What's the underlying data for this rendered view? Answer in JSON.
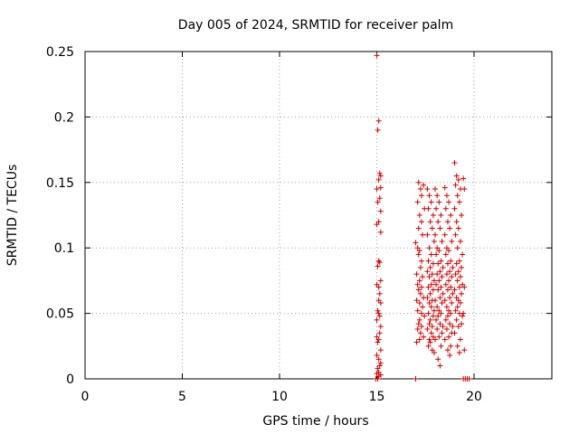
{
  "chart_data": {
    "type": "scatter",
    "title": "Day 005 of 2024, SRMTID for receiver palm",
    "xlabel": "GPS time / hours",
    "ylabel": "SRMTID / TECUs",
    "xlim": [
      0,
      24
    ],
    "ylim": [
      0,
      0.25
    ],
    "xticks": [
      0,
      5,
      10,
      15,
      20
    ],
    "yticks": [
      0,
      0.05,
      0.1,
      0.15,
      0.2,
      0.25
    ],
    "xtick_labels": [
      "0",
      "5",
      "10",
      "15",
      "20"
    ],
    "ytick_labels": [
      "0",
      "0.05",
      "0.1",
      "0.15",
      "0.2",
      "0.25"
    ],
    "grid": true,
    "marker": "+",
    "color": "#d00000",
    "series": [
      {
        "x": [
          15.0,
          15.1,
          15.05,
          15.15,
          15.2,
          15.1,
          15.2,
          15.0,
          15.15,
          15.05,
          15.2,
          15.1,
          15.0,
          15.2,
          15.1,
          15.15,
          15.05,
          15.2,
          15.0,
          15.1,
          15.15,
          15.2,
          15.05,
          15.1,
          15.0,
          15.2,
          15.15,
          15.1,
          15.05,
          15.2,
          15.0,
          15.1,
          15.2,
          15.15,
          15.05,
          15.1,
          15.0,
          15.2,
          15.1,
          15.15,
          15.0,
          15.1,
          17.0,
          17.1,
          17.2,
          17.15,
          17.3,
          17.25,
          17.05,
          17.35,
          17.2,
          17.1,
          17.3,
          17.15,
          17.25,
          17.4,
          17.05,
          17.2,
          17.35,
          17.1,
          17.3,
          17.45,
          17.2,
          17.15,
          17.3,
          17.1,
          17.25,
          17.4,
          17.2,
          17.05,
          17.35,
          17.15,
          17.3,
          17.2,
          17.45,
          17.1,
          17.3,
          17.25,
          17.4,
          17.15,
          17.6,
          17.7,
          17.8,
          17.65,
          17.9,
          17.75,
          17.85,
          17.6,
          17.95,
          17.7,
          17.8,
          17.65,
          17.9,
          17.75,
          17.6,
          17.85,
          17.7,
          17.95,
          17.8,
          17.65,
          17.9,
          17.75,
          17.6,
          17.85,
          17.7,
          17.8,
          17.95,
          17.65,
          17.9,
          17.75,
          17.7,
          17.85,
          17.6,
          17.8,
          17.9,
          17.7,
          17.75,
          17.65,
          17.85,
          17.95,
          18.0,
          18.1,
          18.2,
          18.05,
          18.3,
          18.15,
          18.25,
          18.0,
          18.35,
          18.1,
          18.2,
          18.05,
          18.3,
          18.15,
          18.4,
          18.25,
          18.1,
          18.35,
          18.2,
          18.05,
          18.3,
          18.15,
          18.4,
          18.25,
          18.0,
          18.35,
          18.1,
          18.2,
          18.3,
          18.15,
          18.05,
          18.25,
          18.4,
          18.1,
          18.35,
          18.2,
          18.0,
          18.3,
          18.15,
          18.25,
          18.5,
          18.6,
          18.7,
          18.55,
          18.8,
          18.65,
          18.75,
          18.5,
          18.85,
          18.6,
          18.7,
          18.55,
          18.8,
          18.65,
          18.9,
          18.75,
          18.6,
          18.85,
          18.7,
          18.55,
          18.8,
          18.65,
          18.9,
          18.75,
          18.5,
          18.85,
          18.6,
          18.7,
          18.8,
          18.65,
          18.55,
          18.75,
          18.9,
          18.6,
          18.85,
          18.7,
          18.5,
          18.8,
          18.65,
          18.75,
          19.0,
          19.1,
          19.2,
          19.05,
          19.3,
          19.15,
          19.25,
          19.0,
          19.35,
          19.1,
          19.2,
          19.05,
          19.3,
          19.15,
          19.4,
          19.25,
          19.1,
          19.35,
          19.2,
          19.05,
          19.3,
          19.15,
          19.4,
          19.25,
          19.0,
          19.35,
          19.1,
          19.2,
          19.3,
          19.15,
          19.05,
          19.25,
          19.4,
          19.1,
          19.35,
          19.2,
          19.0,
          19.3,
          19.15,
          19.25,
          19.45,
          19.5,
          19.5,
          19.45,
          19.5,
          14.95,
          15.05,
          17.0,
          19.45,
          19.55,
          19.65,
          19.75
        ],
        "y": [
          0.247,
          0.197,
          0.19,
          0.157,
          0.155,
          0.152,
          0.146,
          0.145,
          0.138,
          0.135,
          0.128,
          0.12,
          0.118,
          0.112,
          0.09,
          0.089,
          0.086,
          0.075,
          0.072,
          0.07,
          0.065,
          0.058,
          0.052,
          0.05,
          0.045,
          0.04,
          0.035,
          0.03,
          0.028,
          0.022,
          0.018,
          0.015,
          0.012,
          0.01,
          0.008,
          0.005,
          0.004,
          0.003,
          0.06,
          0.048,
          0.032,
          0.002,
          0.104,
          0.1,
          0.098,
          0.095,
          0.09,
          0.085,
          0.08,
          0.078,
          0.075,
          0.072,
          0.07,
          0.068,
          0.065,
          0.062,
          0.06,
          0.058,
          0.055,
          0.052,
          0.05,
          0.048,
          0.045,
          0.042,
          0.04,
          0.038,
          0.035,
          0.032,
          0.03,
          0.028,
          0.11,
          0.115,
          0.12,
          0.125,
          0.13,
          0.135,
          0.14,
          0.145,
          0.148,
          0.15,
          0.145,
          0.14,
          0.135,
          0.13,
          0.125,
          0.12,
          0.115,
          0.11,
          0.105,
          0.1,
          0.095,
          0.09,
          0.088,
          0.085,
          0.082,
          0.08,
          0.078,
          0.075,
          0.072,
          0.07,
          0.068,
          0.065,
          0.062,
          0.06,
          0.058,
          0.055,
          0.052,
          0.05,
          0.048,
          0.045,
          0.042,
          0.04,
          0.038,
          0.035,
          0.032,
          0.03,
          0.028,
          0.025,
          0.022,
          0.02,
          0.145,
          0.14,
          0.135,
          0.13,
          0.125,
          0.12,
          0.115,
          0.11,
          0.105,
          0.1,
          0.098,
          0.095,
          0.09,
          0.088,
          0.085,
          0.082,
          0.08,
          0.078,
          0.075,
          0.072,
          0.07,
          0.068,
          0.065,
          0.062,
          0.06,
          0.058,
          0.055,
          0.052,
          0.05,
          0.048,
          0.045,
          0.042,
          0.04,
          0.038,
          0.035,
          0.032,
          0.03,
          0.025,
          0.015,
          0.01,
          0.146,
          0.14,
          0.135,
          0.13,
          0.125,
          0.12,
          0.115,
          0.11,
          0.105,
          0.1,
          0.098,
          0.095,
          0.09,
          0.088,
          0.085,
          0.082,
          0.08,
          0.078,
          0.075,
          0.072,
          0.07,
          0.068,
          0.065,
          0.062,
          0.06,
          0.058,
          0.055,
          0.052,
          0.05,
          0.048,
          0.045,
          0.042,
          0.04,
          0.038,
          0.035,
          0.032,
          0.03,
          0.025,
          0.022,
          0.018,
          0.165,
          0.155,
          0.152,
          0.148,
          0.145,
          0.14,
          0.135,
          0.13,
          0.125,
          0.12,
          0.115,
          0.11,
          0.105,
          0.1,
          0.095,
          0.09,
          0.088,
          0.085,
          0.082,
          0.08,
          0.078,
          0.075,
          0.072,
          0.07,
          0.068,
          0.065,
          0.062,
          0.06,
          0.058,
          0.055,
          0.052,
          0.05,
          0.048,
          0.045,
          0.042,
          0.04,
          0.035,
          0.03,
          0.025,
          0.02,
          0.153,
          0.145,
          0.07,
          0.05,
          0.022,
          0.0,
          0.0,
          0.0,
          0.0,
          0.0,
          0.0,
          0.0
        ]
      }
    ]
  }
}
